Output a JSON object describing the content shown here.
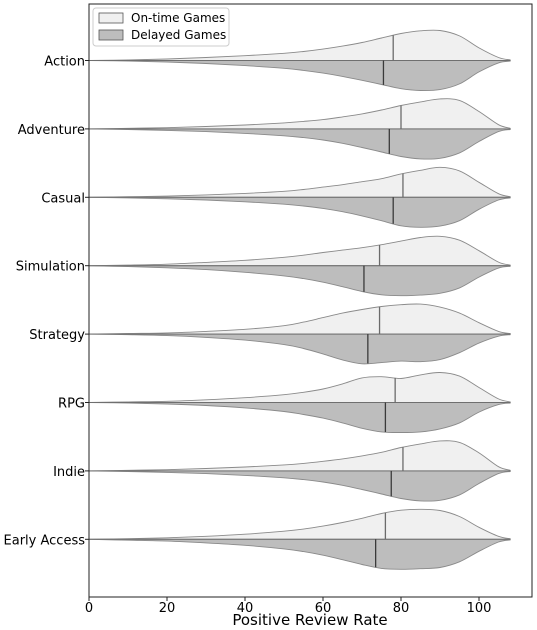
{
  "chart_data": {
    "type": "violin-split",
    "xlabel": "Positive Review Rate",
    "ylabel": "",
    "xlim": [
      0,
      108
    ],
    "xticks": [
      0,
      20,
      40,
      60,
      80,
      100
    ],
    "grid": false,
    "legend_position": "top-left",
    "series": [
      {
        "name": "On-time Games",
        "color": "#f0f0f0",
        "side": "upper"
      },
      {
        "name": "Delayed Games",
        "color": "#bdbdbd",
        "side": "lower"
      }
    ],
    "categories": [
      "Action",
      "Adventure",
      "Casual",
      "Simulation",
      "Strategy",
      "RPG",
      "Indie",
      "Early Access"
    ],
    "medians": {
      "On-time Games": [
        78,
        80,
        80.5,
        74.5,
        74.5,
        78.5,
        80.5,
        76
      ],
      "Delayed Games": [
        75.5,
        77,
        78,
        70.5,
        71.5,
        76,
        77.5,
        73.5
      ]
    },
    "density_x": [
      0,
      10,
      20,
      30,
      40,
      50,
      55,
      60,
      65,
      70,
      75,
      80,
      85,
      90,
      95,
      100,
      105,
      108
    ],
    "densities": [
      {
        "on_time": [
          0.0,
          0.02,
          0.05,
          0.1,
          0.16,
          0.24,
          0.3,
          0.38,
          0.48,
          0.6,
          0.75,
          0.9,
          0.99,
          1.0,
          0.82,
          0.42,
          0.1,
          0.02
        ],
        "delayed": [
          0.0,
          0.02,
          0.05,
          0.1,
          0.17,
          0.26,
          0.33,
          0.42,
          0.53,
          0.66,
          0.8,
          0.94,
          1.0,
          0.97,
          0.78,
          0.38,
          0.08,
          0.02
        ]
      },
      {
        "on_time": [
          0.0,
          0.02,
          0.04,
          0.08,
          0.13,
          0.2,
          0.25,
          0.31,
          0.4,
          0.5,
          0.63,
          0.78,
          0.9,
          1.0,
          0.95,
          0.58,
          0.14,
          0.02
        ],
        "delayed": [
          0.0,
          0.02,
          0.05,
          0.09,
          0.15,
          0.23,
          0.29,
          0.37,
          0.48,
          0.62,
          0.77,
          0.92,
          1.0,
          0.98,
          0.8,
          0.42,
          0.09,
          0.02
        ]
      },
      {
        "on_time": [
          0.0,
          0.02,
          0.04,
          0.08,
          0.13,
          0.2,
          0.26,
          0.34,
          0.42,
          0.52,
          0.62,
          0.78,
          0.9,
          1.0,
          0.88,
          0.5,
          0.12,
          0.02
        ],
        "delayed": [
          0.0,
          0.02,
          0.05,
          0.09,
          0.15,
          0.23,
          0.29,
          0.37,
          0.48,
          0.62,
          0.78,
          0.95,
          1.0,
          0.96,
          0.78,
          0.4,
          0.09,
          0.02
        ]
      },
      {
        "on_time": [
          0.0,
          0.02,
          0.05,
          0.11,
          0.18,
          0.28,
          0.35,
          0.44,
          0.52,
          0.6,
          0.7,
          0.82,
          0.94,
          0.98,
          0.85,
          0.5,
          0.12,
          0.02
        ],
        "delayed": [
          0.0,
          0.03,
          0.07,
          0.13,
          0.22,
          0.34,
          0.43,
          0.55,
          0.7,
          0.86,
          0.97,
          1.0,
          0.98,
          0.92,
          0.74,
          0.38,
          0.08,
          0.02
        ]
      },
      {
        "on_time": [
          0.0,
          0.02,
          0.04,
          0.09,
          0.16,
          0.28,
          0.4,
          0.55,
          0.7,
          0.82,
          0.92,
          0.98,
          1.0,
          0.9,
          0.7,
          0.38,
          0.09,
          0.02
        ],
        "delayed": [
          0.0,
          0.02,
          0.05,
          0.11,
          0.2,
          0.35,
          0.48,
          0.66,
          0.86,
          0.99,
          0.95,
          0.9,
          0.92,
          0.85,
          0.62,
          0.3,
          0.07,
          0.02
        ]
      },
      {
        "on_time": [
          0.0,
          0.02,
          0.04,
          0.09,
          0.16,
          0.26,
          0.34,
          0.45,
          0.62,
          0.82,
          0.86,
          0.8,
          0.92,
          1.0,
          0.88,
          0.5,
          0.12,
          0.02
        ],
        "delayed": [
          0.0,
          0.02,
          0.05,
          0.1,
          0.18,
          0.3,
          0.4,
          0.52,
          0.68,
          0.86,
          0.98,
          1.0,
          0.98,
          0.88,
          0.68,
          0.32,
          0.07,
          0.02
        ]
      },
      {
        "on_time": [
          0.0,
          0.02,
          0.04,
          0.08,
          0.13,
          0.2,
          0.25,
          0.32,
          0.4,
          0.5,
          0.62,
          0.78,
          0.9,
          1.0,
          0.95,
          0.6,
          0.14,
          0.02
        ],
        "delayed": [
          0.0,
          0.02,
          0.05,
          0.09,
          0.15,
          0.23,
          0.29,
          0.37,
          0.48,
          0.62,
          0.77,
          0.92,
          1.0,
          0.98,
          0.8,
          0.42,
          0.09,
          0.02
        ]
      },
      {
        "on_time": [
          0.0,
          0.02,
          0.05,
          0.1,
          0.17,
          0.27,
          0.34,
          0.44,
          0.56,
          0.7,
          0.86,
          0.97,
          1.0,
          0.96,
          0.76,
          0.4,
          0.1,
          0.02
        ],
        "delayed": [
          0.0,
          0.03,
          0.06,
          0.12,
          0.2,
          0.32,
          0.41,
          0.53,
          0.68,
          0.84,
          0.97,
          1.0,
          0.98,
          0.94,
          0.75,
          0.4,
          0.09,
          0.02
        ]
      }
    ]
  }
}
